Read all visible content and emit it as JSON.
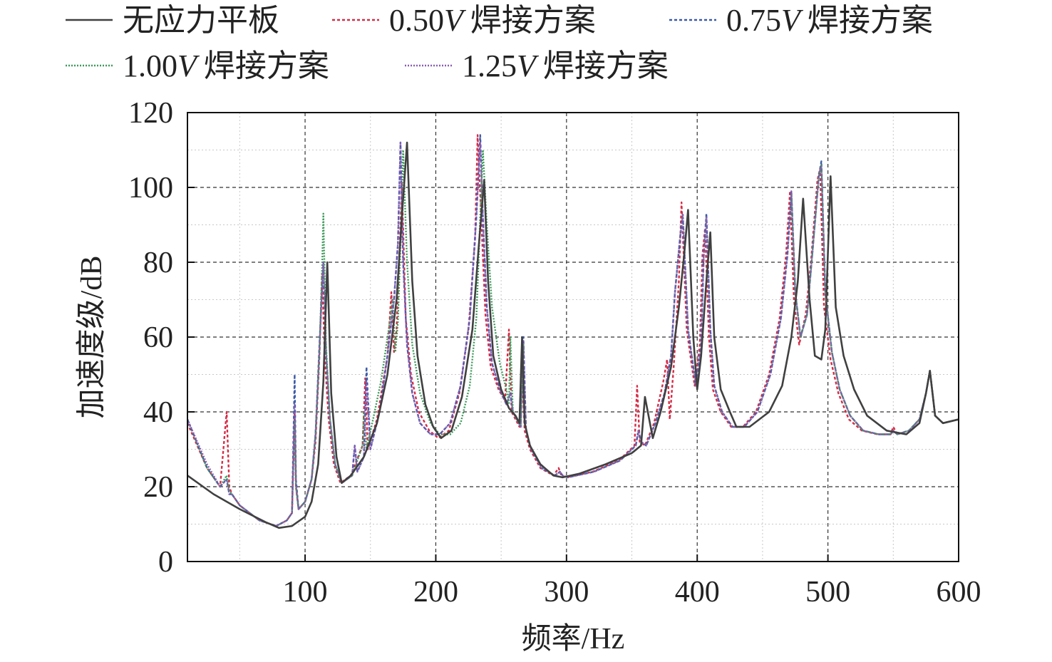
{
  "chart_data": {
    "type": "line",
    "xlabel": "频率/Hz",
    "ylabel": "加速度级/dB",
    "xlim": [
      10,
      600
    ],
    "ylim": [
      0,
      120
    ],
    "xticks": [
      100,
      200,
      300,
      400,
      500,
      600
    ],
    "yticks": [
      0,
      20,
      40,
      60,
      80,
      100,
      120
    ],
    "grid": true,
    "legend_position": "top",
    "series": [
      {
        "name": "无应力平板",
        "label_parts": [
          "",
          "",
          "无应力平板"
        ],
        "color": "#404040",
        "dash": "solid",
        "x": [
          10,
          30,
          50,
          70,
          80,
          90,
          100,
          105,
          110,
          114,
          117,
          120,
          124,
          128,
          135,
          145,
          155,
          163,
          170,
          174,
          178,
          182,
          186,
          192,
          198,
          204,
          212,
          220,
          228,
          233,
          237,
          240,
          244,
          250,
          256,
          261,
          264,
          266,
          268,
          272,
          280,
          290,
          297,
          310,
          330,
          350,
          357,
          360,
          366,
          372,
          380,
          386,
          390,
          393,
          397,
          400,
          403,
          407,
          410,
          413,
          418,
          425,
          430,
          440,
          455,
          465,
          472,
          477,
          481,
          486,
          490,
          495,
          498,
          502,
          506,
          512,
          520,
          530,
          545,
          560,
          570,
          575,
          578,
          582,
          588,
          600
        ],
        "y": [
          23,
          18,
          14,
          10.5,
          9,
          9.5,
          12,
          16,
          26,
          48,
          80,
          45,
          28,
          21,
          23,
          28,
          37,
          50,
          70,
          92,
          112,
          75,
          55,
          42,
          36,
          33,
          35,
          44,
          62,
          85,
          102,
          75,
          55,
          46,
          41,
          39,
          37,
          60,
          37,
          31,
          26,
          23,
          22.5,
          23.5,
          26,
          29,
          31,
          44,
          33,
          40,
          52,
          68,
          82,
          94,
          60,
          46,
          55,
          75,
          88,
          60,
          46,
          40,
          36,
          36,
          40,
          47,
          60,
          75,
          97,
          70,
          55,
          54,
          62,
          103,
          68,
          55,
          46,
          39,
          35,
          34,
          37,
          45,
          51,
          39,
          37,
          38
        ]
      },
      {
        "name": "0.50V焊接方案",
        "label_parts": [
          "0.50",
          "V",
          "焊接方案"
        ],
        "color": "#d62b45",
        "dash": "4,3",
        "x": [
          10,
          25,
          35,
          40,
          42,
          44,
          50,
          65,
          78,
          86,
          90,
          92,
          93,
          95,
          100,
          105,
          108,
          111,
          113,
          115,
          118,
          122,
          127,
          135,
          144,
          146,
          148,
          155,
          163,
          166,
          168,
          170,
          172,
          174,
          177,
          181,
          187,
          195,
          202,
          210,
          218,
          225,
          230,
          232,
          235,
          238,
          242,
          248,
          253,
          256,
          258,
          261,
          264,
          266,
          268,
          272,
          280,
          290,
          294,
          296,
          300,
          320,
          340,
          352,
          354,
          356,
          360,
          367,
          374,
          377,
          379,
          382,
          386,
          388,
          392,
          398,
          402,
          404,
          406,
          409,
          412,
          418,
          426,
          435,
          445,
          455,
          463,
          468,
          471,
          474,
          478,
          483,
          487,
          492,
          494,
          497,
          502,
          508,
          516,
          526,
          538,
          548,
          550,
          553,
          562,
          570,
          575,
          578,
          582,
          588,
          600
        ],
        "y": [
          37,
          25,
          20,
          40,
          20,
          18,
          15,
          11,
          9.5,
          11,
          13,
          40,
          20,
          14,
          16,
          22,
          32,
          55,
          77,
          55,
          38,
          26,
          21,
          23,
          31,
          49,
          30,
          38,
          55,
          72,
          56,
          62,
          80,
          101,
          65,
          50,
          40,
          35,
          33,
          35,
          45,
          62,
          86,
          114,
          90,
          66,
          52,
          46,
          43,
          62,
          40,
          38,
          36,
          52,
          35,
          30,
          25,
          23,
          25,
          23,
          22.5,
          24,
          27,
          31,
          47,
          32,
          31,
          37,
          48,
          54,
          38,
          52,
          75,
          96,
          62,
          47,
          58,
          82,
          89,
          60,
          46,
          40,
          36,
          36,
          40,
          50,
          65,
          82,
          99,
          70,
          58,
          66,
          80,
          102,
          105,
          68,
          54,
          45,
          38,
          35,
          34,
          34,
          36,
          34,
          35,
          38,
          45,
          51,
          39,
          37,
          38
        ]
      },
      {
        "name": "0.75V焊接方案",
        "label_parts": [
          "0.75",
          "V",
          "焊接方案"
        ],
        "color": "#3b5aa6",
        "dash": "4,3",
        "x": [
          10,
          25,
          35,
          40,
          42,
          44,
          50,
          65,
          78,
          86,
          90,
          92,
          93,
          95,
          100,
          105,
          108,
          111,
          114,
          116,
          119,
          123,
          128,
          136,
          138,
          140,
          145,
          147,
          150,
          157,
          163,
          168,
          171,
          173,
          175,
          178,
          182,
          188,
          196,
          203,
          211,
          219,
          226,
          231,
          234,
          236,
          239,
          243,
          249,
          254,
          257,
          259,
          262,
          265,
          267,
          269,
          273,
          281,
          291,
          295,
          297,
          301,
          321,
          341,
          353,
          355,
          357,
          361,
          368,
          375,
          380,
          383,
          387,
          389,
          393,
          399,
          403,
          405,
          407,
          410,
          413,
          419,
          427,
          436,
          446,
          456,
          464,
          469,
          472,
          475,
          479,
          484,
          488,
          493,
          495,
          498,
          503,
          509,
          517,
          527,
          539,
          548,
          550,
          553,
          562,
          570,
          575,
          578,
          582,
          588,
          600
        ],
        "y": [
          38,
          25,
          20,
          22,
          18,
          18,
          15,
          11,
          9.5,
          11,
          13,
          50,
          22,
          14,
          16,
          22,
          34,
          58,
          80,
          56,
          38,
          26,
          21,
          23,
          31,
          24,
          28,
          52,
          30,
          40,
          55,
          70,
          85,
          112,
          80,
          58,
          45,
          37,
          34,
          34,
          37,
          47,
          65,
          92,
          114,
          92,
          68,
          53,
          46,
          42,
          45,
          40,
          38,
          36,
          60,
          35,
          30,
          25,
          23,
          24,
          23,
          22.5,
          24,
          27,
          31,
          35,
          32,
          31,
          37,
          45,
          55,
          72,
          87,
          92,
          62,
          47,
          58,
          82,
          93,
          62,
          47,
          40,
          36,
          36,
          40,
          50,
          65,
          82,
          99,
          72,
          60,
          66,
          82,
          103,
          107,
          72,
          56,
          46,
          39,
          35,
          34,
          34,
          35,
          34,
          35,
          38,
          45,
          51,
          39,
          37,
          38
        ]
      },
      {
        "name": "1.00V焊接方案",
        "label_parts": [
          "1.00",
          "V",
          "焊接方案"
        ],
        "color": "#3d9a5a",
        "dash": "2,2",
        "x": [
          10,
          25,
          35,
          40,
          42,
          44,
          50,
          65,
          78,
          86,
          90,
          92,
          93,
          95,
          100,
          105,
          108,
          111,
          113,
          114,
          116,
          119,
          123,
          128,
          136,
          144,
          145,
          147,
          152,
          158,
          164,
          167,
          169,
          171,
          173,
          175,
          178,
          182,
          188,
          196,
          203,
          211,
          219,
          226,
          231,
          234,
          236,
          239,
          243,
          249,
          254,
          256,
          257,
          259,
          262,
          265,
          267,
          269,
          273,
          281,
          291,
          295,
          297,
          301,
          321,
          341,
          353,
          355,
          357,
          361,
          368,
          375,
          380,
          383,
          387,
          389,
          393,
          399,
          403,
          405,
          407,
          410,
          413,
          419,
          427,
          436,
          446,
          456,
          464,
          469,
          472,
          475,
          479,
          484,
          488,
          493,
          495,
          498,
          503,
          509,
          517,
          527,
          539,
          548,
          550,
          553,
          562,
          570,
          575,
          578,
          582,
          588,
          600
        ],
        "y": [
          38,
          25,
          20,
          23,
          19,
          18,
          15,
          11,
          9.5,
          11,
          13,
          38,
          20,
          14,
          16,
          22,
          34,
          56,
          78,
          93,
          58,
          38,
          26,
          21,
          23,
          31,
          40,
          30,
          38,
          48,
          62,
          70,
          56,
          64,
          85,
          110,
          80,
          58,
          45,
          37,
          34,
          34,
          37,
          47,
          65,
          92,
          110,
          90,
          68,
          53,
          46,
          42,
          60,
          40,
          38,
          36,
          58,
          35,
          30,
          25,
          23,
          24,
          23,
          22.5,
          24,
          27,
          31,
          35,
          32,
          31,
          37,
          45,
          55,
          72,
          87,
          93,
          62,
          47,
          58,
          82,
          92,
          62,
          47,
          40,
          36,
          36,
          40,
          50,
          65,
          82,
          98,
          72,
          60,
          66,
          82,
          103,
          106,
          72,
          56,
          46,
          39,
          35,
          34,
          34,
          35,
          34,
          35,
          38,
          45,
          51,
          39,
          37,
          38
        ]
      },
      {
        "name": "1.25V焊接方案",
        "label_parts": [
          "1.25",
          "V",
          "焊接方案"
        ],
        "color": "#8a5cb5",
        "dash": "2,2",
        "x": [
          10,
          25,
          35,
          40,
          42,
          44,
          50,
          65,
          78,
          86,
          90,
          92,
          93,
          95,
          100,
          105,
          108,
          111,
          114,
          116,
          119,
          123,
          128,
          136,
          138,
          140,
          145,
          147,
          150,
          157,
          163,
          168,
          171,
          173,
          175,
          178,
          182,
          188,
          196,
          203,
          211,
          219,
          226,
          231,
          234,
          236,
          239,
          243,
          249,
          254,
          257,
          259,
          262,
          265,
          267,
          269,
          273,
          281,
          291,
          295,
          297,
          301,
          321,
          341,
          353,
          355,
          357,
          361,
          368,
          375,
          380,
          383,
          387,
          389,
          393,
          399,
          403,
          405,
          407,
          410,
          413,
          419,
          427,
          436,
          446,
          456,
          464,
          469,
          472,
          475,
          479,
          484,
          488,
          493,
          495,
          498,
          503,
          509,
          517,
          527,
          539,
          548,
          550,
          553,
          562,
          570,
          575,
          578,
          582,
          588,
          600
        ],
        "y": [
          38,
          26,
          20,
          22,
          18,
          18,
          15,
          11,
          9.5,
          11,
          13,
          42,
          21,
          14,
          16,
          22,
          34,
          57,
          80,
          56,
          38,
          26,
          21,
          23,
          31,
          24,
          28,
          48,
          30,
          40,
          55,
          70,
          85,
          112,
          80,
          58,
          45,
          37,
          34,
          34,
          37,
          47,
          65,
          92,
          112,
          92,
          68,
          53,
          46,
          42,
          45,
          40,
          38,
          36,
          59,
          35,
          30,
          25,
          23,
          24,
          23,
          22.5,
          24,
          27,
          31,
          35,
          32,
          31,
          37,
          45,
          55,
          72,
          87,
          93,
          62,
          47,
          58,
          82,
          92,
          62,
          47,
          40,
          36,
          36,
          40,
          50,
          65,
          82,
          99,
          72,
          60,
          66,
          82,
          103,
          106,
          72,
          56,
          46,
          39,
          35,
          34,
          34,
          35,
          34,
          35,
          38,
          45,
          51,
          39,
          37,
          38
        ]
      }
    ]
  }
}
